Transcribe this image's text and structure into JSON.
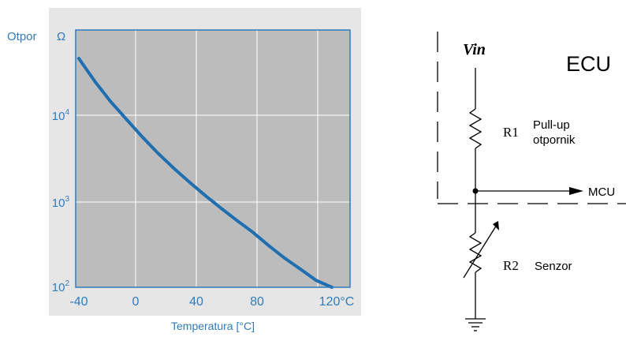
{
  "chart_data": {
    "type": "line",
    "ylabel": "Otpor",
    "yunit": "Ω",
    "xlabel": "Temperatura [°C]",
    "yscale": "log",
    "ylim": [
      100,
      100000
    ],
    "xlim": [
      -40,
      120
    ],
    "xticks": [
      "-40",
      "0",
      "40",
      "80",
      "120°C"
    ],
    "yticks": [
      {
        "base": "10",
        "exp": "2"
      },
      {
        "base": "10",
        "exp": "3"
      },
      {
        "base": "10",
        "exp": "4"
      }
    ],
    "grid": true,
    "colors": {
      "plot_bg": "#bcbcbc",
      "outer_bg": "#e6e6e6",
      "line": "#1f6eb0",
      "frame": "#2f7bbd"
    },
    "series": [
      {
        "x": [
          -40,
          -30,
          -20,
          -10,
          0,
          10,
          20,
          30,
          40,
          50,
          60,
          70,
          80,
          90,
          100,
          110,
          120
        ],
        "y": [
          46000,
          25000,
          14500,
          9000,
          5600,
          3600,
          2400,
          1650,
          1150,
          820,
          590,
          430,
          300,
          215,
          160,
          118,
          98
        ]
      }
    ]
  },
  "circuit": {
    "vin_label": "Vin",
    "ecu_label": "ECU",
    "r1_label": "R1",
    "r1_desc_line1": "Pull-up",
    "r1_desc_line2": "otpornik",
    "mcu_label": "MCU",
    "r2_label": "R2",
    "r2_desc": "Senzor"
  }
}
